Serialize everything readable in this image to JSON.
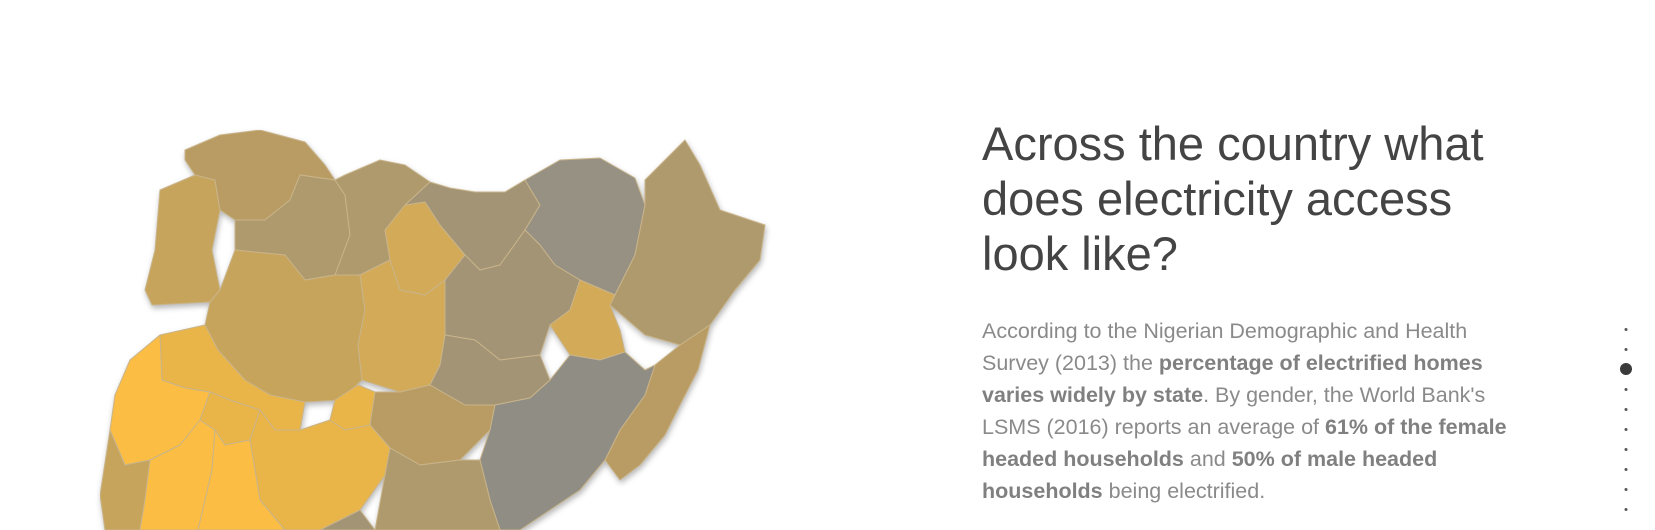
{
  "section": {
    "title": "Across the country what does electricity access look like?",
    "body": [
      {
        "text": "According to the Nigerian Demographic and Health Survey (2013) the ",
        "bold": false
      },
      {
        "text": "percentage of electrified homes varies widely by state",
        "bold": true
      },
      {
        "text": ". By gender, the World Bank's LSMS (2016) reports an average of ",
        "bold": false
      },
      {
        "text": "61% of the female headed households",
        "bold": true
      },
      {
        "text": " and ",
        "bold": false
      },
      {
        "text": "50% of male headed households",
        "bold": true
      },
      {
        "text": " being electrified.",
        "bold": false
      }
    ]
  },
  "nav": {
    "dot_count": 10,
    "active_index": 2
  },
  "map": {
    "colors": {
      "bright": "#fbbd43",
      "orange": "#e9b548",
      "gold": "#d2aa58",
      "light_tan": "#c7a45c",
      "tan": "#b99c63",
      "greige": "#ae9a6d",
      "grey_tan": "#a39475",
      "grey": "#979183",
      "dark_grey": "#8f8d84"
    },
    "states": [
      {
        "name": "sokoto-state",
        "color": "tan"
      },
      {
        "name": "kebbi-state",
        "color": "light_tan"
      },
      {
        "name": "zamfara-state",
        "color": "greige"
      },
      {
        "name": "katsina-state",
        "color": "greige"
      },
      {
        "name": "kano-state",
        "color": "gold"
      },
      {
        "name": "jigawa-state",
        "color": "grey_tan"
      },
      {
        "name": "yobe-state",
        "color": "grey"
      },
      {
        "name": "borno-state",
        "color": "greige"
      },
      {
        "name": "bauchi-state",
        "color": "grey_tan"
      },
      {
        "name": "gombe-state",
        "color": "gold"
      },
      {
        "name": "adamawa-state",
        "color": "tan"
      },
      {
        "name": "niger-state",
        "color": "light_tan"
      },
      {
        "name": "kaduna-state",
        "color": "gold"
      },
      {
        "name": "kwara-state",
        "color": "orange"
      },
      {
        "name": "oyo-state",
        "color": "bright"
      },
      {
        "name": "plateau-state",
        "color": "grey_tan"
      },
      {
        "name": "nasarawa-state",
        "color": "tan"
      },
      {
        "name": "fct-abuja",
        "color": "orange"
      },
      {
        "name": "taraba-state",
        "color": "dark_grey"
      },
      {
        "name": "benue-state",
        "color": "greige"
      },
      {
        "name": "kogi-state",
        "color": "orange"
      },
      {
        "name": "ogun-state",
        "color": "light_tan"
      },
      {
        "name": "osun-state",
        "color": "bright"
      },
      {
        "name": "ekiti-state",
        "color": "orange"
      },
      {
        "name": "ondo-state",
        "color": "bright"
      },
      {
        "name": "enugu-state",
        "color": "grey_tan"
      }
    ]
  }
}
